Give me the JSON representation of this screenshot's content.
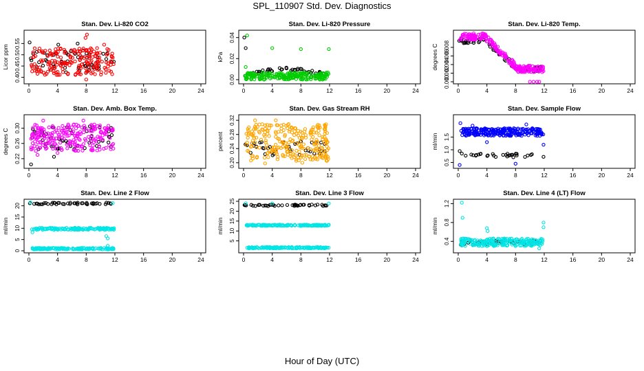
{
  "title": "SPL_110907  Std. Dev. Diagnostics",
  "xlabel": "Hour of Day (UTC)",
  "chart_data": [
    {
      "type": "scatter",
      "title": "Stan. Dev. Li-820 CO2",
      "ylabel": "Licor ppm",
      "xlim": [
        0,
        24
      ],
      "xticks": [
        0,
        4,
        8,
        12,
        16,
        20,
        24
      ],
      "ylim": [
        0.38,
        0.6
      ],
      "yticks": [
        0.4,
        0.45,
        0.5,
        0.55
      ],
      "ytick_labels": [
        "0.40",
        "0.45",
        "0.50",
        "0.55"
      ],
      "grid": false,
      "series": [
        {
          "name": "black",
          "color": "#000000",
          "x_range": [
            0.1,
            11.9
          ],
          "band": [
            0.42,
            0.52
          ],
          "n": 55,
          "extra": [
            [
              0.1,
              0.555
            ],
            [
              0.6,
              0.505
            ],
            [
              4.1,
              0.545
            ],
            [
              6.8,
              0.55
            ]
          ]
        },
        {
          "name": "red",
          "color": "#ff0000",
          "x_range": [
            0.3,
            11.9
          ],
          "band": [
            0.41,
            0.53
          ],
          "n": 200,
          "extra": [
            [
              8.1,
              0.59
            ],
            [
              7.9,
              0.575
            ],
            [
              8.0,
              0.39
            ],
            [
              10.5,
              0.545
            ]
          ]
        }
      ]
    },
    {
      "type": "scatter",
      "title": "Stan. Dev. Li-820 Pressure",
      "ylabel": "kPa",
      "xlim": [
        0,
        24
      ],
      "xticks": [
        0,
        4,
        8,
        12,
        16,
        20,
        24
      ],
      "ylim": [
        -0.002,
        0.045
      ],
      "yticks": [
        0.0,
        0.02,
        0.04
      ],
      "ytick_labels": [
        "0.00",
        "0.02",
        "0.04"
      ],
      "grid": false,
      "series": [
        {
          "name": "black",
          "color": "#000000",
          "x_range": [
            0.1,
            11.9
          ],
          "curve": "hump",
          "base": 0.004,
          "amp": 0.006,
          "spread": 0.003,
          "n": 40,
          "extra": [
            [
              0.1,
              0.04
            ],
            [
              0.3,
              0.03
            ]
          ]
        },
        {
          "name": "green",
          "color": "#00cc00",
          "x_range": [
            0.2,
            11.9
          ],
          "band": [
            0.0,
            0.007
          ],
          "n": 220,
          "extra": [
            [
              0.5,
              0.042
            ],
            [
              4.0,
              0.03
            ],
            [
              8.0,
              0.029
            ],
            [
              11.9,
              0.029
            ],
            [
              0.3,
              0.012
            ]
          ]
        }
      ]
    },
    {
      "type": "scatter",
      "title": "Stan. Dev. Li-820 Temp.",
      "ylabel": "degrees C",
      "xlim": [
        0,
        24
      ],
      "xticks": [
        0,
        4,
        8,
        12,
        16,
        20,
        24
      ],
      "ylim": [
        0,
        0.0115
      ],
      "yticks": [
        0.0,
        0.002,
        0.004,
        0.006,
        0.008
      ],
      "ytick_labels": [
        "0.000",
        "0.002",
        "0.004",
        "0.006",
        "0.008"
      ],
      "grid": false,
      "series": [
        {
          "name": "black",
          "color": "#000000",
          "x_range": [
            0.1,
            11.9
          ],
          "curve": "decline",
          "start": 0.0095,
          "end": 0.003,
          "spread": 0.0012,
          "n": 70
        },
        {
          "name": "magenta",
          "color": "#ff00ff",
          "x_range": [
            0.2,
            11.9
          ],
          "curve": "decline",
          "start": 0.0105,
          "end": 0.003,
          "spread": 0.0015,
          "n": 220,
          "extra": [
            [
              10.0,
              0.0
            ],
            [
              10.5,
              0.0
            ],
            [
              11.0,
              0.0
            ],
            [
              11.3,
              0.0
            ]
          ]
        }
      ]
    },
    {
      "type": "scatter",
      "title": "Stan. Dev. Amb. Box Temp.",
      "ylabel": "degrees C",
      "xlim": [
        0,
        24
      ],
      "xticks": [
        0,
        4,
        8,
        12,
        16,
        20,
        24
      ],
      "ylim": [
        0.2,
        0.33
      ],
      "yticks": [
        0.22,
        0.26,
        0.3
      ],
      "ytick_labels": [
        "0.22",
        "0.26",
        "0.30"
      ],
      "grid": false,
      "series": [
        {
          "name": "black",
          "color": "#000000",
          "x_range": [
            0.1,
            11.9
          ],
          "band": [
            0.245,
            0.305
          ],
          "n": 55,
          "extra": [
            [
              0.3,
              0.205
            ],
            [
              3.5,
              0.225
            ],
            [
              8.5,
              0.305
            ]
          ]
        },
        {
          "name": "magenta",
          "color": "#ff00ff",
          "x_range": [
            0.3,
            11.9
          ],
          "band": [
            0.24,
            0.31
          ],
          "n": 220,
          "extra": [
            [
              1.2,
              0.23
            ],
            [
              2.0,
              0.32
            ],
            [
              4.0,
              0.235
            ],
            [
              7.6,
              0.32
            ]
          ]
        }
      ]
    },
    {
      "type": "scatter",
      "title": "Stan. Dev. Gas Stream RH",
      "ylabel": "percent",
      "xlim": [
        0,
        24
      ],
      "xticks": [
        0,
        4,
        8,
        12,
        16,
        20,
        24
      ],
      "ylim": [
        0.19,
        0.33
      ],
      "yticks": [
        0.2,
        0.24,
        0.28,
        0.32
      ],
      "ytick_labels": [
        "0.20",
        "0.24",
        "0.28",
        "0.32"
      ],
      "grid": false,
      "series": [
        {
          "name": "black",
          "color": "#000000",
          "x_range": [
            0.1,
            11.9
          ],
          "band": [
            0.22,
            0.26
          ],
          "n": 40
        },
        {
          "name": "orange",
          "color": "#ffa500",
          "x_range": [
            0.3,
            11.9
          ],
          "band": [
            0.205,
            0.31
          ],
          "n": 260,
          "extra": [
            [
              1.6,
              0.32
            ],
            [
              4.5,
              0.32
            ],
            [
              8.2,
              0.2
            ],
            [
              3.0,
              0.198
            ]
          ]
        }
      ]
    },
    {
      "type": "scatter",
      "title": "Stan. Dev. Sample Flow",
      "ylabel": "ml/min",
      "xlim": [
        0,
        24
      ],
      "xticks": [
        0,
        4,
        8,
        12,
        16,
        20,
        24
      ],
      "ylim": [
        0.35,
        2.3
      ],
      "yticks": [
        0.5,
        1.0,
        1.5
      ],
      "ytick_labels": [
        "0.5",
        "1.0",
        "1.5"
      ],
      "grid": false,
      "series": [
        {
          "name": "black",
          "color": "#000000",
          "x_range": [
            0.1,
            11.9
          ],
          "band": [
            0.7,
            0.85
          ],
          "n": 30,
          "extra": [
            [
              0.2,
              0.95
            ],
            [
              0.5,
              0.85
            ]
          ]
        },
        {
          "name": "blue",
          "color": "#0000ff",
          "x_range": [
            0.4,
            11.9
          ],
          "band": [
            1.55,
            1.85
          ],
          "n": 240,
          "extra": [
            [
              0.2,
              0.4
            ],
            [
              0.3,
              2.05
            ],
            [
              2.0,
              1.95
            ],
            [
              8.0,
              0.45
            ],
            [
              9.5,
              2.0
            ],
            [
              11.9,
              1.2
            ],
            [
              4.0,
              1.3
            ]
          ]
        }
      ]
    },
    {
      "type": "scatter",
      "title": "Stan. Dev. Line 2 Flow",
      "ylabel": "ml/min",
      "xlim": [
        0,
        24
      ],
      "xticks": [
        0,
        4,
        8,
        12,
        16,
        20,
        24
      ],
      "ylim": [
        0,
        22
      ],
      "yticks": [
        0,
        5,
        10,
        15,
        20
      ],
      "ytick_labels": [
        "0",
        "5",
        "10",
        "15",
        "20"
      ],
      "grid": false,
      "series": [
        {
          "name": "black",
          "color": "#000000",
          "x_range": [
            0.1,
            11.9
          ],
          "band": [
            20.6,
            21.4
          ],
          "n": 45
        },
        {
          "name": "cyan-upper",
          "color": "#00e5e5",
          "x_range": [
            0.4,
            11.9
          ],
          "band": [
            9.3,
            10.2
          ],
          "n": 140,
          "extra": [
            [
              0.2,
              21.5
            ],
            [
              0.5,
              8.2
            ],
            [
              10.8,
              6.5
            ],
            [
              11.0,
              5.5
            ],
            [
              11.7,
              21.2
            ]
          ]
        },
        {
          "name": "cyan-lower",
          "color": "#00e5e5",
          "x_range": [
            0.4,
            11.9
          ],
          "band": [
            0.6,
            1.3
          ],
          "n": 140,
          "extra": [
            [
              11.0,
              2.2
            ]
          ]
        }
      ]
    },
    {
      "type": "scatter",
      "title": "Stan. Dev. Line 3 Flow",
      "ylabel": "ml/min",
      "xlim": [
        0,
        24
      ],
      "xticks": [
        0,
        4,
        8,
        12,
        16,
        20,
        24
      ],
      "ylim": [
        0,
        25
      ],
      "yticks": [
        5,
        10,
        15,
        20,
        25
      ],
      "ytick_labels": [
        "5",
        "10",
        "15",
        "20",
        "25"
      ],
      "grid": false,
      "series": [
        {
          "name": "black",
          "color": "#000000",
          "x_range": [
            0.1,
            11.9
          ],
          "band": [
            22.6,
            23.4
          ],
          "n": 45
        },
        {
          "name": "cyan-upper",
          "color": "#00e5e5",
          "x_range": [
            0.4,
            11.9
          ],
          "band": [
            12.6,
            13.2
          ],
          "n": 150,
          "extra": [
            [
              0.3,
              24.0
            ],
            [
              4.0,
              23.9
            ],
            [
              11.9,
              23.9
            ]
          ]
        },
        {
          "name": "cyan-lower",
          "color": "#00e5e5",
          "x_range": [
            0.4,
            11.9
          ],
          "band": [
            1.2,
            1.9
          ],
          "n": 150
        }
      ]
    },
    {
      "type": "scatter",
      "title": "Stan. Dev. Line 4 (LT) Flow",
      "ylabel": "ml/min",
      "xlim": [
        0,
        24
      ],
      "xticks": [
        0,
        4,
        8,
        12,
        16,
        20,
        24
      ],
      "ylim": [
        0.2,
        1.25
      ],
      "yticks": [
        0.4,
        0.8,
        1.2
      ],
      "ytick_labels": [
        "0.4",
        "0.8",
        "1.2"
      ],
      "grid": false,
      "series": [
        {
          "name": "black",
          "color": "#000000",
          "x_range": [
            0.1,
            11.9
          ],
          "band": [
            0.33,
            0.42
          ],
          "n": 50
        },
        {
          "name": "cyan",
          "color": "#00e5e5",
          "x_range": [
            0.3,
            11.9
          ],
          "band": [
            0.3,
            0.46
          ],
          "n": 220,
          "extra": [
            [
              0.5,
              1.22
            ],
            [
              0.6,
              0.9
            ],
            [
              4.0,
              0.68
            ],
            [
              4.1,
              0.62
            ],
            [
              11.9,
              0.8
            ],
            [
              11.9,
              0.7
            ],
            [
              11.3,
              0.25
            ]
          ]
        }
      ]
    }
  ]
}
